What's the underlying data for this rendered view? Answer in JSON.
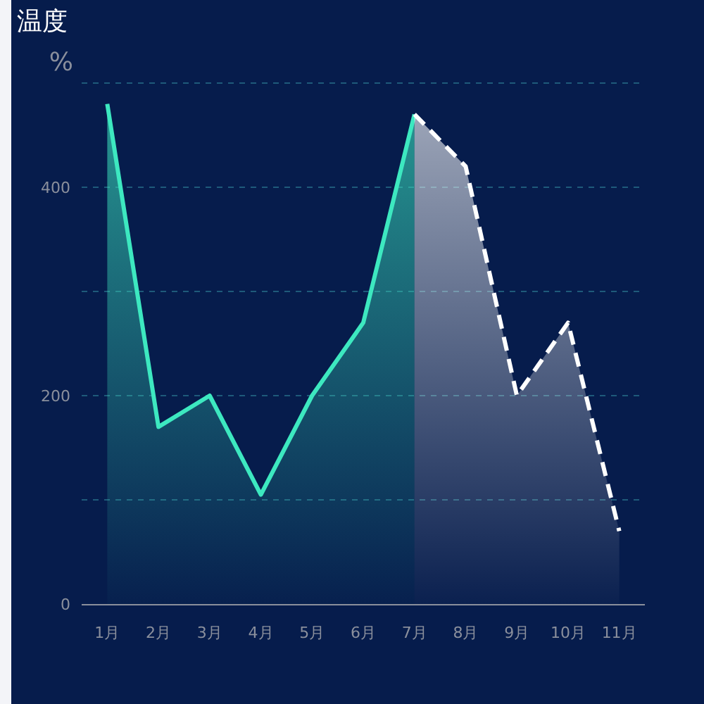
{
  "chart_data": {
    "type": "area",
    "title": "温度",
    "ylabel": "%",
    "categories": [
      "1月",
      "2月",
      "3月",
      "4月",
      "5月",
      "6月",
      "7月",
      "8月",
      "9月",
      "10月",
      "11月"
    ],
    "series": [
      {
        "color": "#3de8c0",
        "line_style": "solid",
        "values": [
          480,
          170,
          200,
          105,
          200,
          270,
          470,
          null,
          null,
          null,
          null
        ]
      },
      {
        "color": "#ffffff",
        "line_style": "dashed",
        "values": [
          null,
          null,
          null,
          null,
          null,
          null,
          470,
          420,
          200,
          270,
          70
        ]
      }
    ],
    "ylim": [
      0,
      500
    ],
    "yticks": [
      0,
      {
        "value": 100,
        "label": null
      },
      200,
      {
        "value": 300,
        "label": null
      },
      400,
      {
        "value": 500,
        "label": null
      }
    ],
    "grid": "y",
    "marker": "none"
  }
}
